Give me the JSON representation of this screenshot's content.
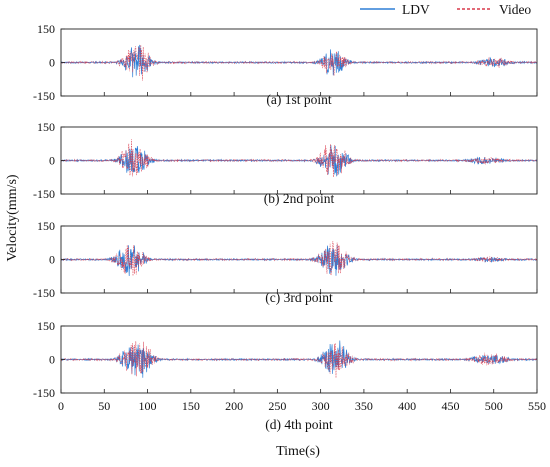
{
  "chart_data": {
    "type": "line",
    "xlabel": "Time(s)",
    "ylabel": "Velocity(mm/s)",
    "xlim": [
      0,
      550
    ],
    "ylim": [
      -150,
      150
    ],
    "x_ticks": [
      0,
      50,
      100,
      150,
      200,
      250,
      300,
      350,
      400,
      450,
      500,
      550
    ],
    "y_ticks": [
      150,
      0,
      -150
    ],
    "legend": {
      "placement": "top-right",
      "entries": [
        "LDV",
        "Video"
      ]
    },
    "series_styles": [
      {
        "name": "LDV",
        "color": "#2f7fd6",
        "style": "solid"
      },
      {
        "name": "Video",
        "color": "#d9384a",
        "style": "dashed"
      }
    ],
    "grid": false,
    "panels": [
      {
        "subtitle": "(a) 1st point",
        "bursts": [
          {
            "center": 88,
            "width": 20,
            "ldv_amplitude": 95,
            "video_amplitude": 105
          },
          {
            "center": 315,
            "width": 18,
            "ldv_amplitude": 85,
            "video_amplitude": 80
          },
          {
            "center": 500,
            "width": 25,
            "ldv_amplitude": 25,
            "video_amplitude": 28
          }
        ]
      },
      {
        "subtitle": "(b) 2nd point",
        "bursts": [
          {
            "center": 85,
            "width": 20,
            "ldv_amplitude": 90,
            "video_amplitude": 110
          },
          {
            "center": 315,
            "width": 20,
            "ldv_amplitude": 95,
            "video_amplitude": 105
          },
          {
            "center": 490,
            "width": 30,
            "ldv_amplitude": 20,
            "video_amplitude": 22
          }
        ]
      },
      {
        "subtitle": "(c) 3rd point",
        "bursts": [
          {
            "center": 80,
            "width": 20,
            "ldv_amplitude": 95,
            "video_amplitude": 100
          },
          {
            "center": 315,
            "width": 22,
            "ldv_amplitude": 90,
            "video_amplitude": 95
          },
          {
            "center": 495,
            "width": 25,
            "ldv_amplitude": 15,
            "video_amplitude": 15
          }
        ]
      },
      {
        "subtitle": "(d) 4th point",
        "bursts": [
          {
            "center": 88,
            "width": 22,
            "ldv_amplitude": 105,
            "video_amplitude": 125
          },
          {
            "center": 318,
            "width": 20,
            "ldv_amplitude": 110,
            "video_amplitude": 95
          },
          {
            "center": 495,
            "width": 28,
            "ldv_amplitude": 30,
            "video_amplitude": 35
          }
        ]
      }
    ]
  }
}
